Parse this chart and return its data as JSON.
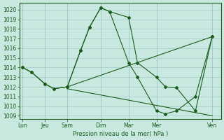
{
  "title": "Pression niveau de la mer( hPa )",
  "bg_color": "#c8e8e0",
  "grid_color": "#a0c8c8",
  "line_color": "#1a5c1a",
  "ylim": [
    1008.7,
    1020.7
  ],
  "yticks": [
    1009,
    1010,
    1011,
    1012,
    1013,
    1014,
    1015,
    1016,
    1017,
    1018,
    1019,
    1020
  ],
  "day_labels": [
    "Lun",
    "Jeu",
    "Sam",
    "Dim",
    "Mar",
    "Mer",
    "Ven"
  ],
  "day_x": [
    0,
    2,
    4,
    7,
    9.5,
    12,
    17
  ],
  "xlim": [
    -0.3,
    17.8
  ],
  "curve1_x": [
    0,
    0.8,
    2,
    2.8,
    4,
    5.2,
    6,
    7,
    7.8,
    9.5,
    10.3,
    12,
    12.8,
    13.8,
    15.5,
    17
  ],
  "curve1_y": [
    1014,
    1013.5,
    1012.3,
    1011.8,
    1012,
    1015.8,
    1018.2,
    1020.2,
    1019.8,
    1019.2,
    1014.5,
    1013,
    1012,
    1011.9,
    1009.5,
    1017.2
  ],
  "curve2_x": [
    0,
    0.8,
    2,
    2.8,
    4,
    5.2,
    6,
    7,
    7.8,
    9.5,
    10.3,
    12,
    12.8,
    13.8,
    15.5,
    17
  ],
  "curve2_y": [
    1014,
    1013.5,
    1012.3,
    1011.8,
    1012,
    1015.8,
    1018.2,
    1020.2,
    1019.8,
    1014.5,
    1013,
    1009.5,
    1009.2,
    1009.5,
    1011,
    1017.2
  ],
  "line3_x": [
    4,
    17
  ],
  "line3_y": [
    1012.0,
    1017.2
  ],
  "line4_x": [
    4,
    17
  ],
  "line4_y": [
    1011.8,
    1009.0
  ]
}
